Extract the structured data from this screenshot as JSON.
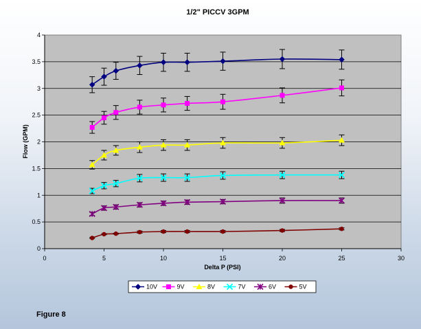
{
  "figure_caption": "Figure 8",
  "chart_data": {
    "type": "line",
    "title": "1/2\" PICCV 3GPM",
    "xlabel": "Delta P (PSI)",
    "ylabel": "Flow (GPM)",
    "xlim": [
      0,
      30
    ],
    "ylim": [
      0,
      4
    ],
    "xticks": [
      "0",
      "5",
      "10",
      "15",
      "20",
      "25",
      "30"
    ],
    "yticks": [
      "0",
      "0.5",
      "1",
      "1.5",
      "2",
      "2.5",
      "3",
      "3.5",
      "4"
    ],
    "grid": "horizontal",
    "legend_position": "bottom",
    "x": [
      4,
      5,
      6,
      8,
      10,
      12,
      15,
      20,
      25
    ],
    "series": [
      {
        "name": "10V",
        "marker": "diamond",
        "color": "#000080",
        "values": [
          3.07,
          3.22,
          3.33,
          3.43,
          3.49,
          3.49,
          3.51,
          3.55,
          3.54
        ],
        "error": [
          0.15,
          0.16,
          0.16,
          0.17,
          0.17,
          0.17,
          0.17,
          0.18,
          0.18
        ]
      },
      {
        "name": "9V",
        "marker": "square",
        "color": "#ff00ff",
        "values": [
          2.27,
          2.45,
          2.55,
          2.65,
          2.69,
          2.72,
          2.75,
          2.87,
          3.01
        ],
        "error": [
          0.11,
          0.12,
          0.13,
          0.13,
          0.13,
          0.13,
          0.14,
          0.14,
          0.15
        ]
      },
      {
        "name": "8V",
        "marker": "triangle",
        "color": "#ffff00",
        "values": [
          1.57,
          1.75,
          1.84,
          1.9,
          1.94,
          1.94,
          1.98,
          1.98,
          2.03
        ],
        "error": [
          0.08,
          0.09,
          0.09,
          0.1,
          0.1,
          0.1,
          0.1,
          0.1,
          0.1
        ]
      },
      {
        "name": "7V",
        "marker": "x",
        "color": "#00ffff",
        "values": [
          1.08,
          1.18,
          1.22,
          1.32,
          1.33,
          1.33,
          1.37,
          1.38,
          1.38
        ],
        "error": [
          0.05,
          0.06,
          0.06,
          0.07,
          0.07,
          0.07,
          0.07,
          0.07,
          0.07
        ]
      },
      {
        "name": "6V",
        "marker": "star",
        "color": "#800080",
        "values": [
          0.65,
          0.76,
          0.78,
          0.82,
          0.85,
          0.87,
          0.88,
          0.9,
          0.9
        ],
        "error": [
          0.03,
          0.04,
          0.04,
          0.04,
          0.04,
          0.04,
          0.04,
          0.05,
          0.05
        ]
      },
      {
        "name": "5V",
        "marker": "circle",
        "color": "#800000",
        "values": [
          0.2,
          0.27,
          0.28,
          0.31,
          0.32,
          0.32,
          0.32,
          0.34,
          0.37
        ],
        "error": [
          0.01,
          0.01,
          0.01,
          0.02,
          0.02,
          0.02,
          0.02,
          0.02,
          0.02
        ]
      }
    ]
  }
}
